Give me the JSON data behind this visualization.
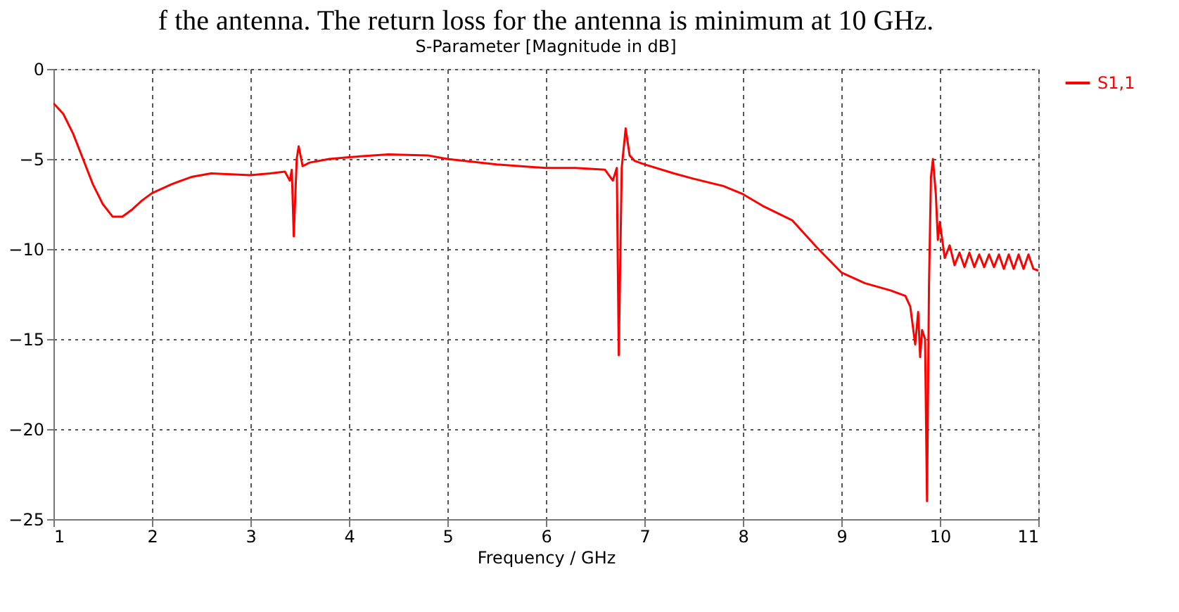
{
  "chart_data": {
    "type": "line",
    "title": "S-Parameter [Magnitude in dB]",
    "xlabel": "Frequency / GHz",
    "annotations": [
      "f the antenna. The return loss for the antenna is minimum at 10 GHz."
    ],
    "xlim": [
      1,
      11
    ],
    "xticks": [
      1,
      2,
      3,
      4,
      5,
      6,
      7,
      8,
      9,
      10,
      11
    ],
    "ylim": [
      -25,
      0
    ],
    "yticks": [
      -25,
      -20,
      -15,
      -10,
      -5,
      0
    ],
    "grid": true,
    "legend": "top right",
    "line_style": "solid",
    "marker": "none",
    "series": [
      {
        "name": "S1,1",
        "color": "#ff0000",
        "x": [
          1.0,
          1.1,
          1.2,
          1.3,
          1.4,
          1.5,
          1.6,
          1.7,
          1.8,
          1.9,
          2.0,
          2.2,
          2.4,
          2.6,
          2.8,
          3.0,
          3.2,
          3.35,
          3.4,
          3.42,
          3.44,
          3.47,
          3.49,
          3.53,
          3.6,
          3.8,
          4.0,
          4.4,
          4.8,
          5.0,
          5.5,
          6.0,
          6.3,
          6.6,
          6.68,
          6.72,
          6.74,
          6.77,
          6.81,
          6.85,
          6.9,
          7.0,
          7.3,
          7.5,
          7.8,
          8.0,
          8.2,
          8.5,
          8.75,
          9.0,
          9.24,
          9.5,
          9.65,
          9.7,
          9.75,
          9.78,
          9.8,
          9.82,
          9.85,
          9.87,
          9.89,
          9.91,
          9.93,
          9.96,
          9.98,
          10.0,
          10.05,
          10.1,
          10.15,
          10.2,
          10.25,
          10.3,
          10.35,
          10.4,
          10.45,
          10.5,
          10.55,
          10.6,
          10.65,
          10.7,
          10.75,
          10.8,
          10.85,
          10.9,
          10.95,
          11.0
        ],
        "values": [
          -1.9,
          -2.5,
          -3.6,
          -5.0,
          -6.4,
          -7.5,
          -8.2,
          -8.2,
          -7.8,
          -7.3,
          -6.9,
          -6.4,
          -6.0,
          -5.8,
          -5.85,
          -5.9,
          -5.8,
          -5.7,
          -6.2,
          -5.6,
          -9.3,
          -5.0,
          -4.3,
          -5.4,
          -5.2,
          -5.0,
          -4.9,
          -4.75,
          -4.8,
          -5.0,
          -5.3,
          -5.5,
          -5.5,
          -5.6,
          -6.2,
          -5.5,
          -15.9,
          -5.5,
          -3.3,
          -4.8,
          -5.1,
          -5.3,
          -5.8,
          -6.1,
          -6.5,
          -6.95,
          -7.6,
          -8.4,
          -9.9,
          -11.3,
          -11.9,
          -12.3,
          -12.6,
          -13.2,
          -15.3,
          -13.5,
          -16.0,
          -14.5,
          -15.0,
          -24.0,
          -12.0,
          -6.0,
          -5.0,
          -7.0,
          -9.5,
          -8.5,
          -10.5,
          -9.8,
          -10.9,
          -10.2,
          -11.0,
          -10.2,
          -11.0,
          -10.3,
          -11.0,
          -10.3,
          -11.0,
          -10.3,
          -11.1,
          -10.3,
          -11.1,
          -10.3,
          -11.1,
          -10.3,
          -11.1,
          -11.2
        ]
      }
    ]
  }
}
